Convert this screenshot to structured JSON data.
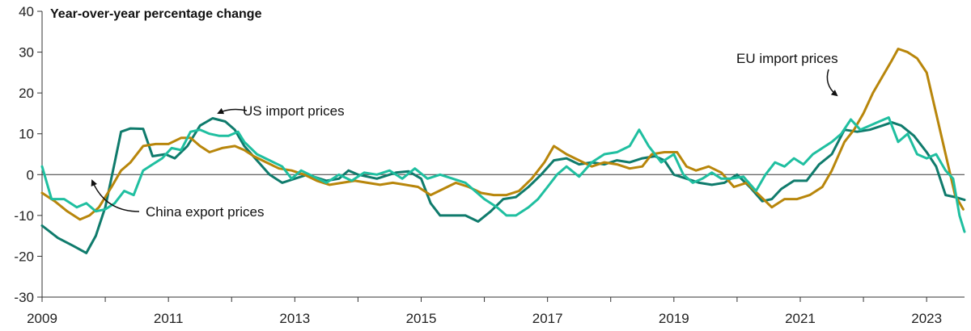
{
  "chart_data": {
    "type": "line",
    "title": "Year-over-year percentage change",
    "xlabel": "",
    "ylabel": "",
    "xlim": [
      2009,
      2023.6
    ],
    "ylim": [
      -30,
      40
    ],
    "y_ticks": [
      -30,
      -20,
      -10,
      0,
      10,
      20,
      30,
      40
    ],
    "x_tick_labels": [
      "2009",
      "2011",
      "2013",
      "2015",
      "2017",
      "2019",
      "2021",
      "2023"
    ],
    "grid": false,
    "zero_line": true,
    "colors": {
      "us": "#0f7b6c",
      "eu": "#b8860b",
      "china": "#1fbfa0",
      "axis": "#333333"
    },
    "series": [
      {
        "key": "us",
        "name": "US import prices",
        "points": [
          [
            2009.0,
            -12.5
          ],
          [
            2009.25,
            -15.5
          ],
          [
            2009.5,
            -17.5
          ],
          [
            2009.7,
            -19.2
          ],
          [
            2009.85,
            -15
          ],
          [
            2010.0,
            -8
          ],
          [
            2010.15,
            3
          ],
          [
            2010.25,
            10.5
          ],
          [
            2010.4,
            11.3
          ],
          [
            2010.6,
            11.2
          ],
          [
            2010.75,
            4.5
          ],
          [
            2010.95,
            5
          ],
          [
            2011.1,
            4
          ],
          [
            2011.3,
            7
          ],
          [
            2011.5,
            12
          ],
          [
            2011.7,
            13.8
          ],
          [
            2011.9,
            13
          ],
          [
            2012.05,
            11
          ],
          [
            2012.2,
            7
          ],
          [
            2012.4,
            3.5
          ],
          [
            2012.6,
            0
          ],
          [
            2012.8,
            -2
          ],
          [
            2013.0,
            -1
          ],
          [
            2013.2,
            0
          ],
          [
            2013.5,
            -1.5
          ],
          [
            2013.7,
            -1
          ],
          [
            2013.85,
            1
          ],
          [
            2014.0,
            0
          ],
          [
            2014.3,
            -1
          ],
          [
            2014.6,
            0.5
          ],
          [
            2014.8,
            0.8
          ],
          [
            2015.0,
            -1
          ],
          [
            2015.15,
            -7
          ],
          [
            2015.3,
            -10
          ],
          [
            2015.5,
            -10
          ],
          [
            2015.7,
            -10
          ],
          [
            2015.9,
            -11.5
          ],
          [
            2016.1,
            -9
          ],
          [
            2016.3,
            -6
          ],
          [
            2016.5,
            -5.5
          ],
          [
            2016.7,
            -3
          ],
          [
            2016.9,
            0
          ],
          [
            2017.1,
            3.5
          ],
          [
            2017.3,
            4
          ],
          [
            2017.5,
            2.5
          ],
          [
            2017.7,
            3
          ],
          [
            2017.9,
            2.5
          ],
          [
            2018.1,
            3.5
          ],
          [
            2018.3,
            3
          ],
          [
            2018.5,
            4
          ],
          [
            2018.7,
            4.5
          ],
          [
            2018.85,
            3.5
          ],
          [
            2019.0,
            0
          ],
          [
            2019.2,
            -1
          ],
          [
            2019.4,
            -2
          ],
          [
            2019.6,
            -2.5
          ],
          [
            2019.8,
            -2
          ],
          [
            2020.0,
            0
          ],
          [
            2020.2,
            -3
          ],
          [
            2020.4,
            -6.5
          ],
          [
            2020.55,
            -6
          ],
          [
            2020.7,
            -3.5
          ],
          [
            2020.9,
            -1.5
          ],
          [
            2021.1,
            -1.5
          ],
          [
            2021.3,
            2.5
          ],
          [
            2021.5,
            5
          ],
          [
            2021.7,
            11
          ],
          [
            2021.9,
            10.5
          ],
          [
            2022.1,
            11
          ],
          [
            2022.3,
            12
          ],
          [
            2022.45,
            12.8
          ],
          [
            2022.6,
            12
          ],
          [
            2022.8,
            9.5
          ],
          [
            2023.0,
            5.5
          ],
          [
            2023.15,
            2
          ],
          [
            2023.3,
            -5
          ],
          [
            2023.45,
            -5.5
          ],
          [
            2023.6,
            -6.2
          ]
        ]
      },
      {
        "key": "eu",
        "name": "EU import prices",
        "points": [
          [
            2009.0,
            -4.5
          ],
          [
            2009.2,
            -6.5
          ],
          [
            2009.4,
            -9
          ],
          [
            2009.6,
            -11
          ],
          [
            2009.75,
            -10
          ],
          [
            2009.9,
            -8
          ],
          [
            2010.1,
            -3
          ],
          [
            2010.25,
            1
          ],
          [
            2010.4,
            3
          ],
          [
            2010.6,
            7
          ],
          [
            2010.8,
            7.5
          ],
          [
            2011.0,
            7.5
          ],
          [
            2011.2,
            9
          ],
          [
            2011.35,
            9
          ],
          [
            2011.5,
            7
          ],
          [
            2011.65,
            5.5
          ],
          [
            2011.85,
            6.5
          ],
          [
            2012.05,
            7
          ],
          [
            2012.2,
            6
          ],
          [
            2012.35,
            4.5
          ],
          [
            2012.55,
            3
          ],
          [
            2012.75,
            1.5
          ],
          [
            2012.95,
            1
          ],
          [
            2013.15,
            0
          ],
          [
            2013.35,
            -1.5
          ],
          [
            2013.55,
            -2.5
          ],
          [
            2013.75,
            -2
          ],
          [
            2013.95,
            -1.5
          ],
          [
            2014.15,
            -2
          ],
          [
            2014.35,
            -2.5
          ],
          [
            2014.55,
            -2
          ],
          [
            2014.75,
            -2.5
          ],
          [
            2014.95,
            -3
          ],
          [
            2015.15,
            -5
          ],
          [
            2015.35,
            -3.5
          ],
          [
            2015.55,
            -2
          ],
          [
            2015.75,
            -3
          ],
          [
            2015.95,
            -4.5
          ],
          [
            2016.15,
            -5
          ],
          [
            2016.35,
            -5
          ],
          [
            2016.55,
            -4
          ],
          [
            2016.75,
            -1
          ],
          [
            2016.95,
            3
          ],
          [
            2017.1,
            7
          ],
          [
            2017.3,
            5
          ],
          [
            2017.5,
            3.5
          ],
          [
            2017.7,
            2
          ],
          [
            2017.9,
            3
          ],
          [
            2018.1,
            2.5
          ],
          [
            2018.3,
            1.5
          ],
          [
            2018.5,
            2
          ],
          [
            2018.65,
            5
          ],
          [
            2018.85,
            5.5
          ],
          [
            2019.05,
            5.5
          ],
          [
            2019.2,
            2
          ],
          [
            2019.35,
            1
          ],
          [
            2019.55,
            2
          ],
          [
            2019.75,
            0.5
          ],
          [
            2019.95,
            -3
          ],
          [
            2020.15,
            -2
          ],
          [
            2020.35,
            -5
          ],
          [
            2020.55,
            -8
          ],
          [
            2020.75,
            -6
          ],
          [
            2020.95,
            -6
          ],
          [
            2021.15,
            -5
          ],
          [
            2021.35,
            -3
          ],
          [
            2021.5,
            1
          ],
          [
            2021.7,
            8
          ],
          [
            2021.85,
            11
          ],
          [
            2022.0,
            15
          ],
          [
            2022.15,
            20
          ],
          [
            2022.3,
            24
          ],
          [
            2022.45,
            28
          ],
          [
            2022.55,
            30.8
          ],
          [
            2022.7,
            30
          ],
          [
            2022.85,
            28.5
          ],
          [
            2023.0,
            25
          ],
          [
            2023.15,
            15
          ],
          [
            2023.3,
            5
          ],
          [
            2023.45,
            -5
          ],
          [
            2023.58,
            -8.5
          ]
        ]
      },
      {
        "key": "china",
        "name": "China export prices",
        "points": [
          [
            2009.0,
            2
          ],
          [
            2009.15,
            -6
          ],
          [
            2009.35,
            -6
          ],
          [
            2009.55,
            -8
          ],
          [
            2009.7,
            -7
          ],
          [
            2009.85,
            -9
          ],
          [
            2010.0,
            -8.5
          ],
          [
            2010.15,
            -7
          ],
          [
            2010.3,
            -4
          ],
          [
            2010.45,
            -5
          ],
          [
            2010.6,
            1
          ],
          [
            2010.75,
            2.5
          ],
          [
            2010.9,
            4
          ],
          [
            2011.05,
            6.5
          ],
          [
            2011.2,
            6
          ],
          [
            2011.35,
            10.5
          ],
          [
            2011.5,
            11
          ],
          [
            2011.65,
            10
          ],
          [
            2011.8,
            9.5
          ],
          [
            2011.95,
            9.5
          ],
          [
            2012.1,
            10.5
          ],
          [
            2012.2,
            8
          ],
          [
            2012.4,
            5
          ],
          [
            2012.6,
            3.5
          ],
          [
            2012.8,
            2
          ],
          [
            2012.95,
            -1
          ],
          [
            2013.1,
            1
          ],
          [
            2013.3,
            -0.5
          ],
          [
            2013.5,
            -2
          ],
          [
            2013.7,
            0
          ],
          [
            2013.9,
            -1.5
          ],
          [
            2014.1,
            0.5
          ],
          [
            2014.3,
            0
          ],
          [
            2014.5,
            1
          ],
          [
            2014.7,
            -1
          ],
          [
            2014.9,
            1.5
          ],
          [
            2015.1,
            -1
          ],
          [
            2015.3,
            0
          ],
          [
            2015.5,
            -1
          ],
          [
            2015.7,
            -2
          ],
          [
            2015.85,
            -4
          ],
          [
            2016.0,
            -6
          ],
          [
            2016.2,
            -8
          ],
          [
            2016.35,
            -10
          ],
          [
            2016.5,
            -10
          ],
          [
            2016.7,
            -8
          ],
          [
            2016.85,
            -6
          ],
          [
            2017.0,
            -3
          ],
          [
            2017.15,
            0
          ],
          [
            2017.3,
            2
          ],
          [
            2017.5,
            -0.5
          ],
          [
            2017.7,
            3
          ],
          [
            2017.9,
            5
          ],
          [
            2018.1,
            5.5
          ],
          [
            2018.3,
            7
          ],
          [
            2018.45,
            11
          ],
          [
            2018.6,
            7
          ],
          [
            2018.8,
            3
          ],
          [
            2019.0,
            5
          ],
          [
            2019.15,
            0
          ],
          [
            2019.3,
            -2
          ],
          [
            2019.45,
            -1
          ],
          [
            2019.6,
            0.5
          ],
          [
            2019.75,
            -1
          ],
          [
            2019.9,
            -1
          ],
          [
            2020.1,
            -0.5
          ],
          [
            2020.3,
            -4
          ],
          [
            2020.45,
            0
          ],
          [
            2020.6,
            3
          ],
          [
            2020.75,
            2
          ],
          [
            2020.9,
            4
          ],
          [
            2021.05,
            2.5
          ],
          [
            2021.2,
            5
          ],
          [
            2021.35,
            6.5
          ],
          [
            2021.5,
            8
          ],
          [
            2021.65,
            10
          ],
          [
            2021.8,
            13.5
          ],
          [
            2021.95,
            11
          ],
          [
            2022.1,
            12
          ],
          [
            2022.25,
            13
          ],
          [
            2022.4,
            14
          ],
          [
            2022.55,
            8
          ],
          [
            2022.7,
            10
          ],
          [
            2022.85,
            5
          ],
          [
            2023.0,
            4
          ],
          [
            2023.15,
            5
          ],
          [
            2023.3,
            1
          ],
          [
            2023.42,
            -1
          ],
          [
            2023.52,
            -10
          ],
          [
            2023.6,
            -14
          ]
        ]
      }
    ],
    "annotations": [
      {
        "series": "us",
        "text": "US import prices"
      },
      {
        "series": "eu",
        "text": "EU import prices"
      },
      {
        "series": "china",
        "text": "China export prices"
      }
    ]
  }
}
